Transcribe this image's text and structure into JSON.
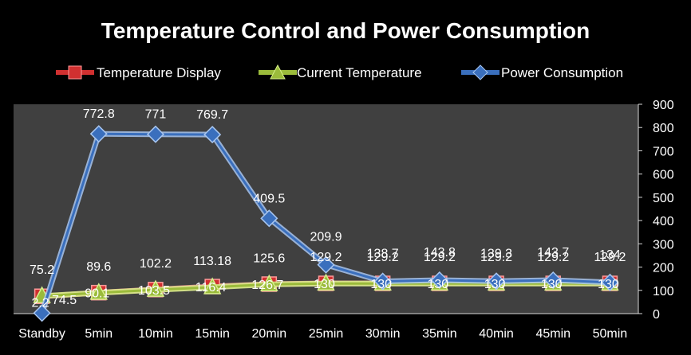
{
  "colors": {
    "background": "#000000",
    "plot_area": "#404040",
    "text": "#ffffff",
    "temperature_display": "#d03030",
    "current_temperature": "#9bbb3b",
    "power_consumption": "#3a6fbd"
  },
  "chart_data": {
    "type": "line",
    "title": "Temperature Control and Power Consumption",
    "categories": [
      "Standby",
      "5min",
      "10min",
      "15min",
      "20min",
      "25min",
      "30min",
      "35min",
      "40min",
      "45min",
      "50min"
    ],
    "series": [
      {
        "name": "Temperature Display",
        "marker": "square",
        "values": [
          74.5,
          90.1,
          103.5,
          116.4,
          126.7,
          130,
          130,
          130,
          130,
          130,
          130
        ],
        "labels": [
          "74.5",
          "90.1",
          "103.5",
          "116.4",
          "126.7",
          "130",
          "130",
          "130",
          "130",
          "130",
          "130"
        ]
      },
      {
        "name": "Current Temperature",
        "marker": "triangle",
        "values": [
          75.2,
          89.6,
          102.2,
          113.18,
          125.6,
          129.2,
          129.2,
          129.2,
          129.2,
          129.2,
          129.2
        ],
        "labels": [
          "75.2",
          "89.6",
          "102.2",
          "113.18",
          "125.6",
          "129.2",
          "129.2",
          "129.2",
          "129.2",
          "129.2",
          "129.2"
        ]
      },
      {
        "name": "Power Consumption",
        "marker": "diamond",
        "values": [
          2.2,
          772.8,
          771,
          769.7,
          409.5,
          209.9,
          138.7,
          143.8,
          139.3,
          143.7,
          134
        ],
        "labels": [
          "2.2",
          "772.8",
          "771",
          "769.7",
          "409.5",
          "209.9",
          "138.7",
          "143.8",
          "139.3",
          "143.7",
          "134"
        ]
      }
    ],
    "y_axis": {
      "side": "right",
      "ylim": [
        0,
        900
      ],
      "ticks": [
        "0",
        "100",
        "200",
        "300",
        "400",
        "500",
        "600",
        "700",
        "800",
        "900"
      ]
    },
    "grid": false,
    "legend_position": "top"
  }
}
